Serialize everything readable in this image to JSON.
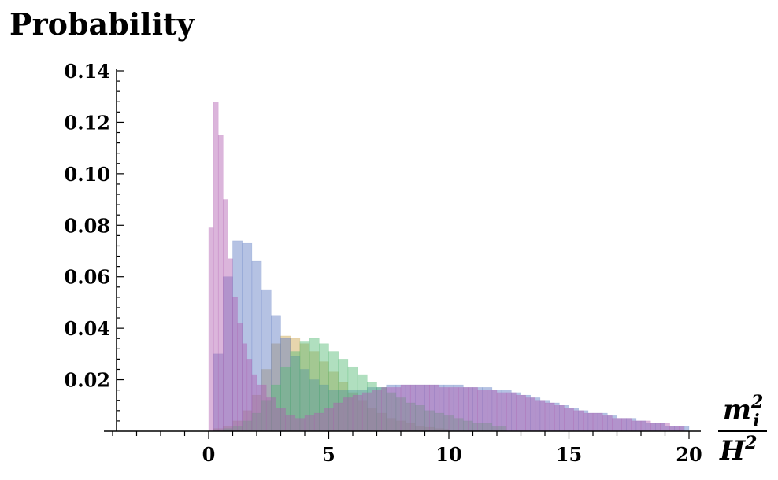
{
  "chart_data": {
    "type": "histogram",
    "title": "Probability",
    "xlabel": {
      "num_base": "m",
      "num_sub": "i",
      "num_sup": "2",
      "den_base": "H",
      "den_sup": "2"
    },
    "xlim": [
      -4,
      20.5
    ],
    "ylim": [
      0,
      0.14
    ],
    "x_ticks": [
      0,
      5,
      10,
      15,
      20
    ],
    "y_ticks": [
      0.02,
      0.04,
      0.06,
      0.08,
      0.1,
      0.12,
      0.14
    ],
    "y_tick_labels": [
      "0.02",
      "0.04",
      "0.06",
      "0.08",
      "0.10",
      "0.12",
      "0.14"
    ],
    "bin_width": 0.2,
    "series": [
      {
        "color": "#c9a24a",
        "opacity": 0.45,
        "bins": [
          [
            0.2,
            0.001
          ],
          [
            0.6,
            0.002
          ],
          [
            1.0,
            0.004
          ],
          [
            1.4,
            0.008
          ],
          [
            1.8,
            0.014
          ],
          [
            2.2,
            0.024
          ],
          [
            2.6,
            0.034
          ],
          [
            3.0,
            0.037
          ],
          [
            3.4,
            0.036
          ],
          [
            3.8,
            0.034
          ],
          [
            4.2,
            0.031
          ],
          [
            4.6,
            0.027
          ],
          [
            5.0,
            0.023
          ],
          [
            5.4,
            0.019
          ],
          [
            5.8,
            0.015
          ],
          [
            6.2,
            0.012
          ],
          [
            6.6,
            0.009
          ],
          [
            7.0,
            0.007
          ],
          [
            7.4,
            0.005
          ],
          [
            7.8,
            0.004
          ],
          [
            8.2,
            0.003
          ],
          [
            8.6,
            0.002
          ],
          [
            9.0,
            0.0015
          ],
          [
            9.4,
            0.001
          ],
          [
            9.8,
            0.0007
          ]
        ]
      },
      {
        "color": "#5a78c0",
        "opacity": 0.45,
        "bins": [
          [
            0.2,
            0.03
          ],
          [
            0.6,
            0.06
          ],
          [
            1.0,
            0.074
          ],
          [
            1.4,
            0.073
          ],
          [
            1.8,
            0.066
          ],
          [
            2.2,
            0.055
          ],
          [
            2.6,
            0.045
          ],
          [
            3.0,
            0.036
          ],
          [
            3.4,
            0.029
          ],
          [
            3.8,
            0.024
          ],
          [
            4.2,
            0.02
          ],
          [
            4.6,
            0.018
          ],
          [
            5.0,
            0.016
          ],
          [
            5.4,
            0.016
          ],
          [
            5.8,
            0.016
          ],
          [
            6.2,
            0.016
          ],
          [
            6.6,
            0.017
          ],
          [
            7.0,
            0.017
          ],
          [
            7.4,
            0.018
          ],
          [
            7.8,
            0.018
          ],
          [
            8.2,
            0.018
          ],
          [
            8.6,
            0.018
          ],
          [
            9.0,
            0.018
          ],
          [
            9.4,
            0.018
          ],
          [
            9.8,
            0.018
          ],
          [
            10.2,
            0.018
          ],
          [
            10.6,
            0.017
          ],
          [
            11.0,
            0.017
          ],
          [
            11.4,
            0.017
          ],
          [
            11.8,
            0.016
          ],
          [
            12.2,
            0.016
          ],
          [
            12.6,
            0.015
          ],
          [
            13.0,
            0.014
          ],
          [
            13.4,
            0.013
          ],
          [
            13.8,
            0.012
          ],
          [
            14.2,
            0.011
          ],
          [
            14.6,
            0.01
          ],
          [
            15.0,
            0.009
          ],
          [
            15.4,
            0.008
          ],
          [
            15.8,
            0.007
          ],
          [
            16.2,
            0.007
          ],
          [
            16.6,
            0.006
          ],
          [
            17.0,
            0.005
          ],
          [
            17.4,
            0.005
          ],
          [
            17.8,
            0.004
          ],
          [
            18.2,
            0.003
          ],
          [
            18.6,
            0.003
          ],
          [
            19.0,
            0.002
          ],
          [
            19.4,
            0.002
          ],
          [
            19.8,
            0.002
          ]
        ]
      },
      {
        "color": "#4fb870",
        "opacity": 0.45,
        "bins": [
          [
            0.6,
            0.001
          ],
          [
            1.0,
            0.002
          ],
          [
            1.4,
            0.004
          ],
          [
            1.8,
            0.007
          ],
          [
            2.2,
            0.012
          ],
          [
            2.6,
            0.018
          ],
          [
            3.0,
            0.025
          ],
          [
            3.4,
            0.031
          ],
          [
            3.8,
            0.035
          ],
          [
            4.2,
            0.036
          ],
          [
            4.6,
            0.034
          ],
          [
            5.0,
            0.031
          ],
          [
            5.4,
            0.028
          ],
          [
            5.8,
            0.025
          ],
          [
            6.2,
            0.022
          ],
          [
            6.6,
            0.019
          ],
          [
            7.0,
            0.017
          ],
          [
            7.4,
            0.015
          ],
          [
            7.8,
            0.013
          ],
          [
            8.2,
            0.011
          ],
          [
            8.6,
            0.01
          ],
          [
            9.0,
            0.008
          ],
          [
            9.4,
            0.007
          ],
          [
            9.8,
            0.006
          ],
          [
            10.2,
            0.005
          ],
          [
            10.6,
            0.004
          ],
          [
            11.0,
            0.003
          ],
          [
            11.4,
            0.003
          ],
          [
            11.8,
            0.002
          ],
          [
            12.2,
            0.002
          ]
        ]
      },
      {
        "color": "#b05cb0",
        "opacity": 0.45,
        "bins": [
          [
            0.0,
            0.079
          ],
          [
            0.2,
            0.128
          ],
          [
            0.4,
            0.115
          ],
          [
            0.6,
            0.09
          ],
          [
            0.8,
            0.067
          ],
          [
            1.0,
            0.052
          ],
          [
            1.2,
            0.042
          ],
          [
            1.4,
            0.034
          ],
          [
            1.6,
            0.028
          ],
          [
            1.8,
            0.022
          ],
          [
            2.0,
            0.018
          ],
          [
            2.4,
            0.013
          ],
          [
            2.8,
            0.009
          ],
          [
            3.2,
            0.006
          ],
          [
            3.6,
            0.005
          ],
          [
            4.0,
            0.006
          ],
          [
            4.4,
            0.007
          ],
          [
            4.8,
            0.009
          ],
          [
            5.2,
            0.011
          ],
          [
            5.6,
            0.013
          ],
          [
            6.0,
            0.014
          ],
          [
            6.4,
            0.015
          ],
          [
            6.8,
            0.016
          ],
          [
            7.2,
            0.017
          ],
          [
            7.6,
            0.017
          ],
          [
            8.0,
            0.018
          ],
          [
            8.4,
            0.018
          ],
          [
            8.8,
            0.018
          ],
          [
            9.2,
            0.018
          ],
          [
            9.6,
            0.017
          ],
          [
            10.0,
            0.017
          ],
          [
            10.4,
            0.017
          ],
          [
            10.8,
            0.017
          ],
          [
            11.2,
            0.016
          ],
          [
            11.6,
            0.016
          ],
          [
            12.0,
            0.015
          ],
          [
            12.4,
            0.015
          ],
          [
            12.8,
            0.014
          ],
          [
            13.2,
            0.013
          ],
          [
            13.6,
            0.012
          ],
          [
            14.0,
            0.011
          ],
          [
            14.4,
            0.01
          ],
          [
            14.8,
            0.009
          ],
          [
            15.2,
            0.008
          ],
          [
            15.6,
            0.007
          ],
          [
            16.0,
            0.007
          ],
          [
            16.4,
            0.006
          ],
          [
            16.8,
            0.005
          ],
          [
            17.2,
            0.005
          ],
          [
            17.6,
            0.004
          ],
          [
            18.0,
            0.004
          ],
          [
            18.4,
            0.003
          ],
          [
            18.8,
            0.003
          ],
          [
            19.2,
            0.002
          ],
          [
            19.6,
            0.002
          ]
        ]
      }
    ]
  }
}
